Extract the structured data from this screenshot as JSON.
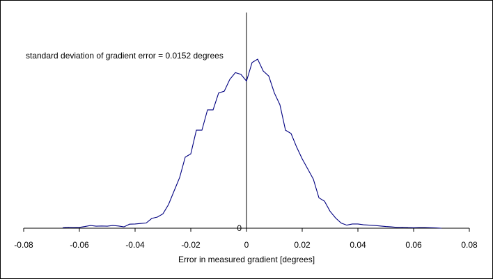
{
  "chart_data": {
    "type": "line",
    "annotation": "standard deviation of gradient error = 0.0152 degrees",
    "xlabel": "Error in measured gradient [degrees]",
    "ylabel": "",
    "title": "",
    "xlim": [
      -0.08,
      0.08
    ],
    "ylim": [
      0,
      1
    ],
    "x_ticks": [
      -0.08,
      -0.06,
      -0.04,
      -0.02,
      0,
      0.02,
      0.04,
      0.06,
      0.08
    ],
    "x_tick_labels": [
      "-0.08",
      "-0.06",
      "-0.04",
      "-0.02",
      "0",
      "0.02",
      "0.04",
      "0.06",
      "0.08"
    ],
    "y_tick_label": "0",
    "grid": false,
    "legend": "none",
    "line_color": "#000080",
    "axis_color": "#000000",
    "series": [
      {
        "x": [
          -0.066,
          -0.064,
          -0.062,
          -0.06,
          -0.058,
          -0.056,
          -0.054,
          -0.052,
          -0.05,
          -0.048,
          -0.046,
          -0.044,
          -0.042,
          -0.04,
          -0.038,
          -0.036,
          -0.034,
          -0.032,
          -0.03,
          -0.028,
          -0.026,
          -0.024,
          -0.022,
          -0.02,
          -0.018,
          -0.016,
          -0.014,
          -0.012,
          -0.01,
          -0.008,
          -0.006,
          -0.004,
          -0.002,
          0.0,
          0.002,
          0.004,
          0.006,
          0.008,
          0.01,
          0.012,
          0.014,
          0.016,
          0.018,
          0.02,
          0.022,
          0.024,
          0.026,
          0.028,
          0.03,
          0.032,
          0.034,
          0.036,
          0.038,
          0.04,
          0.042,
          0.044,
          0.046,
          0.048,
          0.05,
          0.052,
          0.054,
          0.056,
          0.058,
          0.06,
          0.062,
          0.064,
          0.066,
          0.068,
          0.07
        ],
        "y": [
          0.003,
          0.006,
          0.004,
          0.005,
          0.01,
          0.016,
          0.012,
          0.013,
          0.012,
          0.016,
          0.013,
          0.008,
          0.024,
          0.025,
          0.028,
          0.031,
          0.058,
          0.066,
          0.085,
          0.14,
          0.22,
          0.3,
          0.42,
          0.44,
          0.58,
          0.58,
          0.7,
          0.7,
          0.8,
          0.81,
          0.88,
          0.92,
          0.91,
          0.87,
          0.98,
          1.0,
          0.93,
          0.9,
          0.8,
          0.73,
          0.58,
          0.56,
          0.48,
          0.41,
          0.35,
          0.29,
          0.18,
          0.16,
          0.1,
          0.06,
          0.03,
          0.018,
          0.025,
          0.025,
          0.02,
          0.018,
          0.016,
          0.013,
          0.01,
          0.008,
          0.005,
          0.006,
          0.004,
          0.003,
          0.004,
          0.004,
          0.003,
          0.002,
          0.0
        ]
      }
    ]
  }
}
